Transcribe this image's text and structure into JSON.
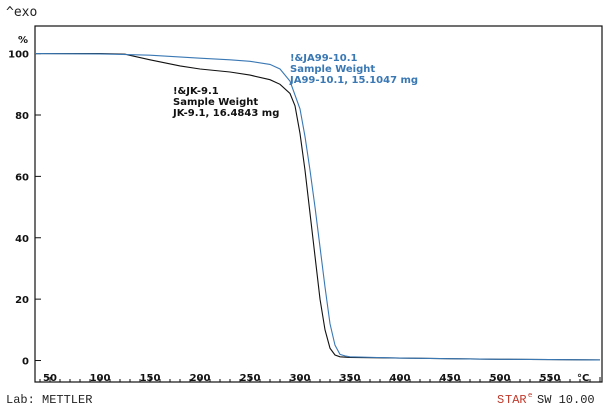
{
  "header": {
    "exo_label": "^exo"
  },
  "chart_data": {
    "type": "line",
    "title": "",
    "xlabel": "",
    "ylabel": "%",
    "x_unit": "°C",
    "xlim": [
      35,
      602
    ],
    "ylim": [
      -7,
      109
    ],
    "x_ticks": [
      50,
      100,
      150,
      200,
      250,
      300,
      350,
      400,
      450,
      500,
      550
    ],
    "y_ticks": [
      0,
      20,
      40,
      60,
      80,
      100
    ],
    "grid": false,
    "series": [
      {
        "name": "!&JK-9.1",
        "color": "#111111",
        "x": [
          35,
          100,
          125,
          150,
          180,
          200,
          230,
          250,
          270,
          280,
          290,
          295,
          300,
          305,
          310,
          315,
          320,
          325,
          330,
          335,
          340,
          350,
          400,
          450,
          500,
          550,
          600
        ],
        "y": [
          100,
          100,
          99.8,
          98,
          96,
          95,
          94,
          93,
          91.5,
          90,
          87,
          83,
          74,
          62,
          48,
          34,
          20,
          10,
          4,
          1.8,
          1.2,
          1.0,
          0.8,
          0.6,
          0.4,
          0.3,
          0.2
        ]
      },
      {
        "name": "!&JA99-10.1",
        "color": "#3a78b4",
        "x": [
          35,
          100,
          150,
          200,
          230,
          250,
          270,
          280,
          290,
          300,
          305,
          310,
          315,
          320,
          325,
          330,
          335,
          340,
          345,
          350,
          400,
          450,
          500,
          550,
          600
        ],
        "y": [
          100,
          99.9,
          99.5,
          98.5,
          98,
          97.5,
          96.5,
          95,
          91,
          82,
          73,
          62,
          50,
          37,
          24,
          12,
          5,
          2,
          1.5,
          1.2,
          0.8,
          0.6,
          0.4,
          0.3,
          0.2
        ]
      }
    ],
    "annotations": [
      {
        "series": "!&JK-9.1",
        "lines": [
          "!&JK-9.1",
          "Sample Weight",
          "JK-9.1, 16.4843 mg"
        ],
        "color": "#111111"
      },
      {
        "series": "!&JA99-10.1",
        "lines": [
          "!&JA99-10.1",
          "Sample Weight",
          "JA99-10.1, 15.1047 mg"
        ],
        "color": "#3a78b4"
      }
    ]
  },
  "footer": {
    "lab": "Lab: METTLER",
    "star_s": "S",
    "star_tar": "TAR",
    "star_reg": "e",
    "software": "SW 10.00"
  }
}
